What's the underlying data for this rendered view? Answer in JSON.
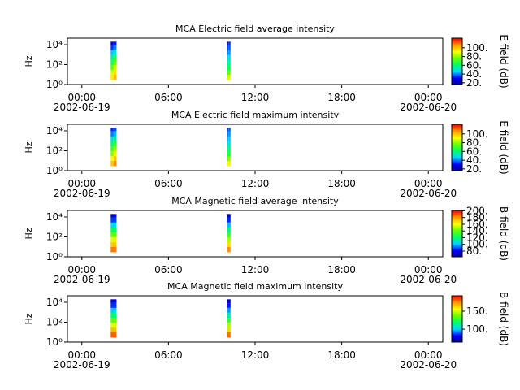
{
  "chart_data": [
    {
      "type": "spectrogram",
      "title": "MCA  Electric field average intensity",
      "ylabel": "Hz",
      "log_y": true,
      "xlim": [
        -1,
        25
      ],
      "xticks": [
        {
          "value": 0,
          "label": "00:00"
        },
        {
          "value": 6,
          "label": "06:00"
        },
        {
          "value": 12,
          "label": "12:00"
        },
        {
          "value": 18,
          "label": "18:00"
        },
        {
          "value": 24,
          "label": "00:00"
        }
      ],
      "xtick_dates": [
        {
          "value": 0,
          "label": "2002-06-19"
        },
        {
          "value": 24,
          "label": "2002-06-20"
        }
      ],
      "ylim": [
        1,
        45000
      ],
      "yticks": [
        {
          "value": 1,
          "label": "10⁰"
        },
        {
          "value": 100,
          "label": "10²"
        },
        {
          "value": 10000,
          "label": "10⁴"
        }
      ],
      "freq_bins": [
        3,
        10,
        30,
        100,
        300,
        1000,
        3000,
        10000,
        20000
      ],
      "bursts": [
        {
          "start": 2.0,
          "end": 2.2,
          "values": [
            95,
            88,
            75,
            65,
            55,
            45,
            35,
            30
          ]
        },
        {
          "start": 2.2,
          "end": 2.4,
          "values": [
            102,
            96,
            86,
            76,
            64,
            50,
            40,
            32
          ]
        },
        {
          "start": 10.05,
          "end": 10.15,
          "values": [
            85,
            72,
            60,
            55,
            46,
            40,
            36,
            32
          ]
        },
        {
          "start": 10.15,
          "end": 10.3,
          "values": [
            90,
            76,
            62,
            56,
            48,
            42,
            38,
            35
          ]
        }
      ],
      "colorbar": {
        "label": "E field (dB)",
        "lim": [
          16,
          122
        ],
        "ticks": [
          {
            "value": 20,
            "label": "20."
          },
          {
            "value": 40,
            "label": "40."
          },
          {
            "value": 60,
            "label": "60."
          },
          {
            "value": 80,
            "label": "80."
          },
          {
            "value": 100,
            "label": "100."
          }
        ]
      },
      "colormap": [
        "#00007f",
        "#0000ff",
        "#00d4ff",
        "#00ff66",
        "#66ff00",
        "#ffff00",
        "#ff9900",
        "#ff0000"
      ]
    },
    {
      "type": "spectrogram",
      "title": "MCA  Electric field maximum intensity",
      "ylabel": "Hz",
      "log_y": true,
      "xlim": [
        -1,
        25
      ],
      "xticks": [
        {
          "value": 0,
          "label": "00:00"
        },
        {
          "value": 6,
          "label": "06:00"
        },
        {
          "value": 12,
          "label": "12:00"
        },
        {
          "value": 18,
          "label": "18:00"
        },
        {
          "value": 24,
          "label": "00:00"
        }
      ],
      "xtick_dates": [
        {
          "value": 0,
          "label": "2002-06-19"
        },
        {
          "value": 24,
          "label": "2002-06-20"
        }
      ],
      "ylim": [
        1,
        45000
      ],
      "yticks": [
        {
          "value": 1,
          "label": "10⁰"
        },
        {
          "value": 100,
          "label": "10²"
        },
        {
          "value": 10000,
          "label": "10⁴"
        }
      ],
      "freq_bins": [
        3,
        10,
        30,
        100,
        300,
        1000,
        3000,
        10000,
        20000
      ],
      "bursts": [
        {
          "start": 2.0,
          "end": 2.2,
          "values": [
            100,
            92,
            80,
            70,
            60,
            50,
            40,
            34
          ]
        },
        {
          "start": 2.2,
          "end": 2.4,
          "values": [
            108,
            100,
            90,
            80,
            68,
            55,
            44,
            36
          ]
        },
        {
          "start": 10.05,
          "end": 10.15,
          "values": [
            90,
            76,
            64,
            58,
            50,
            44,
            40,
            36
          ]
        },
        {
          "start": 10.15,
          "end": 10.3,
          "values": [
            94,
            80,
            66,
            60,
            52,
            46,
            42,
            38
          ]
        }
      ],
      "colorbar": {
        "label": "E field (dB)",
        "lim": [
          16,
          122
        ],
        "ticks": [
          {
            "value": 20,
            "label": "20."
          },
          {
            "value": 40,
            "label": "40."
          },
          {
            "value": 60,
            "label": "60."
          },
          {
            "value": 80,
            "label": "80."
          },
          {
            "value": 100,
            "label": "100."
          }
        ]
      },
      "colormap": [
        "#00007f",
        "#0000ff",
        "#00d4ff",
        "#00ff66",
        "#66ff00",
        "#ffff00",
        "#ff9900",
        "#ff0000"
      ]
    },
    {
      "type": "spectrogram",
      "title": "MCA  Magnetic field average intensity",
      "ylabel": "Hz",
      "log_y": true,
      "xlim": [
        -1,
        25
      ],
      "xticks": [
        {
          "value": 0,
          "label": "00:00"
        },
        {
          "value": 6,
          "label": "06:00"
        },
        {
          "value": 12,
          "label": "12:00"
        },
        {
          "value": 18,
          "label": "18:00"
        },
        {
          "value": 24,
          "label": "00:00"
        }
      ],
      "xtick_dates": [
        {
          "value": 0,
          "label": "2002-06-19"
        },
        {
          "value": 24,
          "label": "2002-06-20"
        }
      ],
      "ylim": [
        1,
        45000
      ],
      "yticks": [
        {
          "value": 1,
          "label": "10⁰"
        },
        {
          "value": 100,
          "label": "10²"
        },
        {
          "value": 10000,
          "label": "10⁴"
        }
      ],
      "freq_bins": [
        3,
        10,
        30,
        100,
        300,
        1000,
        3000,
        10000,
        20000
      ],
      "bursts": [
        {
          "start": 2.0,
          "end": 2.4,
          "values": [
            185,
            172,
            158,
            140,
            122,
            104,
            88,
            75
          ]
        },
        {
          "start": 10.05,
          "end": 10.3,
          "values": [
            182,
            168,
            150,
            132,
            115,
            100,
            86,
            74
          ]
        }
      ],
      "colorbar": {
        "label": "B field (dB)",
        "lim": [
          63,
          201
        ],
        "ticks": [
          {
            "value": 80,
            "label": "80."
          },
          {
            "value": 100,
            "label": "100."
          },
          {
            "value": 120,
            "label": "120."
          },
          {
            "value": 140,
            "label": "140."
          },
          {
            "value": 160,
            "label": "160."
          },
          {
            "value": 180,
            "label": "180."
          },
          {
            "value": 200,
            "label": "200."
          }
        ]
      },
      "colormap": [
        "#00007f",
        "#0000ff",
        "#00d4ff",
        "#00ff66",
        "#66ff00",
        "#ffff00",
        "#ff9900",
        "#ff0000"
      ]
    },
    {
      "type": "spectrogram",
      "title": "MCA  Magnetic field maximum intensity",
      "ylabel": "Hz",
      "log_y": true,
      "xlim": [
        -1,
        25
      ],
      "xticks": [
        {
          "value": 0,
          "label": "00:00"
        },
        {
          "value": 6,
          "label": "06:00"
        },
        {
          "value": 12,
          "label": "12:00"
        },
        {
          "value": 18,
          "label": "18:00"
        },
        {
          "value": 24,
          "label": "00:00"
        }
      ],
      "xtick_dates": [
        {
          "value": 0,
          "label": "2002-06-19"
        },
        {
          "value": 24,
          "label": "2002-06-20"
        }
      ],
      "ylim": [
        1,
        45000
      ],
      "yticks": [
        {
          "value": 1,
          "label": "10⁰"
        },
        {
          "value": 100,
          "label": "10²"
        },
        {
          "value": 10000,
          "label": "10⁴"
        }
      ],
      "freq_bins": [
        3,
        10,
        30,
        100,
        300,
        1000,
        3000,
        10000,
        20000
      ],
      "bursts": [
        {
          "start": 2.0,
          "end": 2.4,
          "values": [
            182,
            168,
            152,
            135,
            118,
            100,
            86,
            76
          ]
        },
        {
          "start": 10.05,
          "end": 10.3,
          "values": [
            180,
            164,
            146,
            128,
            110,
            96,
            84,
            74
          ]
        }
      ],
      "colorbar": {
        "label": "B field (dB)",
        "lim": [
          64,
          193
        ],
        "ticks": [
          {
            "value": 100,
            "label": "100."
          },
          {
            "value": 150,
            "label": "150."
          }
        ]
      },
      "colormap": [
        "#00007f",
        "#0000ff",
        "#00d4ff",
        "#00ff66",
        "#66ff00",
        "#ffff00",
        "#ff9900",
        "#ff0000"
      ]
    }
  ]
}
